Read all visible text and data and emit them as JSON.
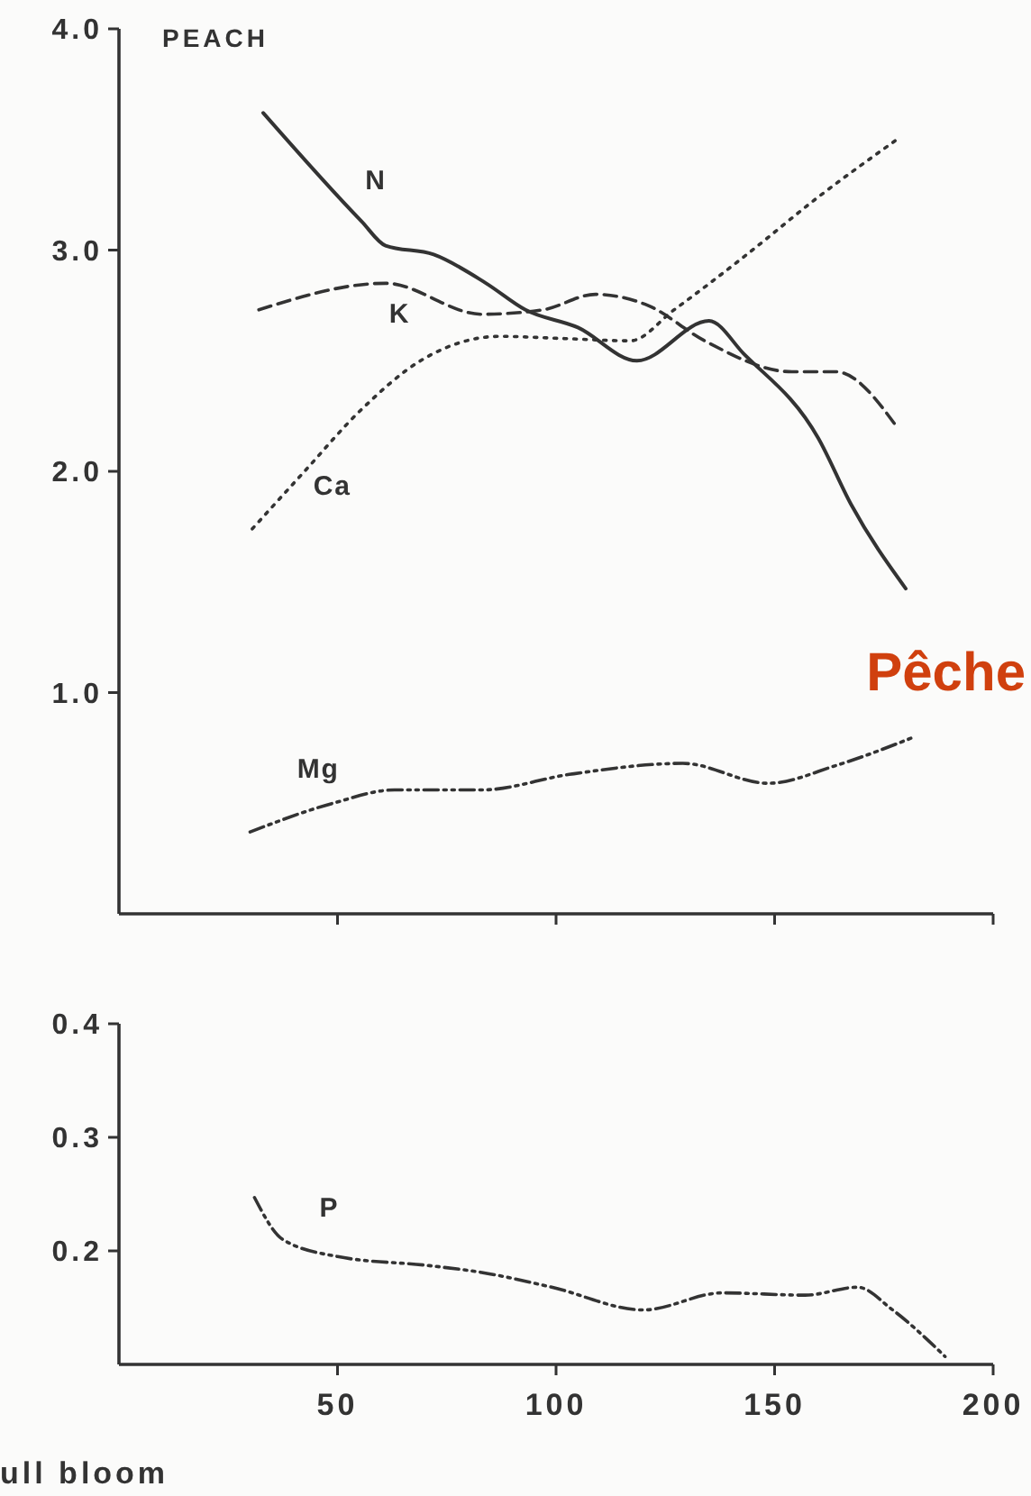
{
  "chart_data": [
    {
      "type": "line",
      "title": "PEACH",
      "xlim": [
        0,
        200
      ],
      "xticks": [
        50,
        100,
        150,
        200
      ],
      "ylim": [
        0,
        4
      ],
      "yticks": [
        {
          "value": 1,
          "label": "1.0"
        },
        {
          "value": 2,
          "label": "2.0"
        },
        {
          "value": 3,
          "label": "3.0"
        },
        {
          "value": 4,
          "label": "4.0"
        }
      ],
      "tick_labels": "y",
      "annotations": [
        "Pêche"
      ],
      "series": [
        {
          "name": "N",
          "color": "#333333",
          "line_style": "solid",
          "x": [
            33,
            55.5,
            61,
            72,
            84,
            93,
            105,
            118.5,
            135,
            143,
            160,
            167.5,
            180
          ],
          "values": [
            3.62,
            3.13,
            3.02,
            2.98,
            2.85,
            2.73,
            2.65,
            2.5,
            2.68,
            2.53,
            2.15,
            1.85,
            1.47
          ]
        },
        {
          "name": "K",
          "color": "#333333",
          "line_style": "dashed",
          "x": [
            32,
            61,
            83,
            97,
            109,
            121,
            134,
            154,
            164,
            178
          ],
          "values": [
            2.73,
            2.85,
            2.71,
            2.73,
            2.8,
            2.75,
            2.59,
            2.45,
            2.45,
            2.2
          ]
        },
        {
          "name": "Ca",
          "color": "#333333",
          "line_style": "dotted",
          "x": [
            30.5,
            42,
            55.5,
            69,
            87,
            102,
            117,
            127,
            143,
            160,
            178
          ],
          "values": [
            1.74,
            1.99,
            2.28,
            2.5,
            2.61,
            2.6,
            2.59,
            2.73,
            2.97,
            3.24,
            3.5
          ]
        },
        {
          "name": "Mg",
          "color": "#333333",
          "line_style": "dashdot",
          "x": [
            30,
            49,
            63,
            83,
            103,
            129,
            148.5,
            164,
            182
          ],
          "values": [
            0.37,
            0.5,
            0.56,
            0.56,
            0.63,
            0.68,
            0.59,
            0.67,
            0.8
          ]
        }
      ]
    },
    {
      "type": "line",
      "xlabel": "ull bloom",
      "xlim": [
        0,
        200
      ],
      "xticks": [
        50,
        100,
        150,
        200
      ],
      "ylim": [
        0.1,
        0.4
      ],
      "yticks": [
        {
          "value": 0.2,
          "label": "0.2"
        },
        {
          "value": 0.3,
          "label": "0.3"
        },
        {
          "value": 0.4,
          "label": "0.4"
        }
      ],
      "series": [
        {
          "name": "P",
          "color": "#333333",
          "line_style": "dashdot",
          "x": [
            31,
            37.5,
            50,
            71,
            83,
            99,
            120,
            138,
            157,
            169,
            177,
            189
          ],
          "values": [
            0.247,
            0.21,
            0.195,
            0.187,
            0.181,
            0.168,
            0.148,
            0.163,
            0.161,
            0.168,
            0.148,
            0.107
          ]
        }
      ]
    }
  ]
}
